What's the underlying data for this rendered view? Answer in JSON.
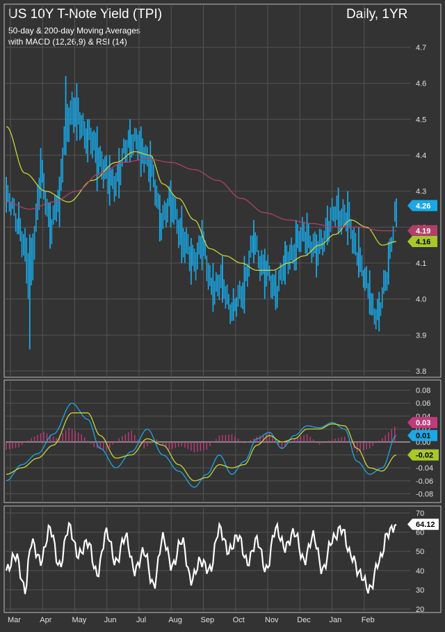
{
  "header": {
    "title": "US 10Y T-Note Yield (TPI)",
    "subtitle1": "50-day & 200-day Moving Averages",
    "subtitle2": "with MACD (12,26,9) & RSI (14)",
    "period": "Daily, 1YR"
  },
  "colors": {
    "background": "#333333",
    "panel_border": "#bfbfbf",
    "grid": "#555555",
    "price": "#1aa8e6",
    "ma50": "#c8d43a",
    "ma200": "#b0406a",
    "macd": "#1aa8e6",
    "signal": "#c8d43a",
    "histogram": "#c23a7c",
    "rsi": "#ffffff",
    "axis_text": "#e0e0e0"
  },
  "x_axis": {
    "labels": [
      "Mar",
      "Apr",
      "May",
      "Jun",
      "Jul",
      "Aug",
      "Sep",
      "Oct",
      "Nov",
      "Dec",
      "Jan",
      "Feb"
    ],
    "n_bars": 250
  },
  "chart_data": [
    {
      "type": "line",
      "panel": "price",
      "ylim": [
        3.8,
        4.7
      ],
      "yticks": [
        "3.8",
        "3.9",
        "4.0",
        "4.1",
        "4.2",
        "4.3",
        "4.4",
        "4.5",
        "4.6",
        "4.7"
      ],
      "series": [
        {
          "name": "",
          "style": "hlc-bars",
          "x": [
            0,
            8,
            15,
            22,
            28,
            34,
            38,
            45,
            52,
            58,
            66,
            72,
            79,
            86,
            92,
            98,
            105,
            112,
            118,
            125,
            132,
            138,
            145,
            152,
            158,
            165,
            172,
            178,
            185,
            192,
            198,
            205,
            212,
            218,
            225,
            232,
            238,
            244,
            249
          ],
          "values": [
            4.28,
            4.22,
            4.05,
            4.35,
            4.2,
            4.28,
            4.5,
            4.52,
            4.45,
            4.41,
            4.32,
            4.35,
            4.46,
            4.42,
            4.38,
            4.22,
            4.27,
            4.18,
            4.1,
            4.15,
            4.02,
            4.05,
            3.96,
            4.05,
            4.16,
            4.08,
            4.02,
            4.1,
            4.15,
            4.18,
            4.12,
            4.2,
            4.25,
            4.22,
            4.12,
            4.0,
            3.95,
            4.1,
            4.26
          ],
          "ranges": [
            [
              4.24,
              4.34
            ],
            [
              4.18,
              4.27
            ],
            [
              3.86,
              4.18
            ],
            [
              4.28,
              4.42
            ],
            [
              4.14,
              4.27
            ],
            [
              4.2,
              4.34
            ],
            [
              4.4,
              4.62
            ],
            [
              4.44,
              4.6
            ],
            [
              4.38,
              4.5
            ],
            [
              4.3,
              4.48
            ],
            [
              4.26,
              4.4
            ],
            [
              4.28,
              4.42
            ],
            [
              4.38,
              4.5
            ],
            [
              4.34,
              4.48
            ],
            [
              4.3,
              4.44
            ],
            [
              4.16,
              4.29
            ],
            [
              4.2,
              4.33
            ],
            [
              4.1,
              4.26
            ],
            [
              4.04,
              4.17
            ],
            [
              4.08,
              4.22
            ],
            [
              3.98,
              4.1
            ],
            [
              3.99,
              4.12
            ],
            [
              3.94,
              4.03
            ],
            [
              3.96,
              4.12
            ],
            [
              4.1,
              4.22
            ],
            [
              4.0,
              4.14
            ],
            [
              3.97,
              4.08
            ],
            [
              4.04,
              4.16
            ],
            [
              4.08,
              4.22
            ],
            [
              4.12,
              4.24
            ],
            [
              4.06,
              4.18
            ],
            [
              4.15,
              4.26
            ],
            [
              4.18,
              4.31
            ],
            [
              4.15,
              4.3
            ],
            [
              4.06,
              4.2
            ],
            [
              3.96,
              4.08
            ],
            [
              3.91,
              4.02
            ],
            [
              4.04,
              4.16
            ],
            [
              4.2,
              4.28
            ]
          ]
        },
        {
          "name": "",
          "x": [
            0,
            12,
            25,
            40,
            55,
            70,
            82,
            92,
            100,
            110,
            120,
            130,
            140,
            150,
            160,
            170,
            180,
            190,
            200,
            210,
            220,
            230,
            240,
            249
          ],
          "values": [
            4.48,
            4.35,
            4.3,
            4.27,
            4.33,
            4.38,
            4.41,
            4.4,
            4.32,
            4.28,
            4.22,
            4.14,
            4.12,
            4.1,
            4.08,
            4.08,
            4.1,
            4.12,
            4.15,
            4.18,
            4.22,
            4.2,
            4.15,
            4.16
          ]
        },
        {
          "name": "",
          "x": [
            0,
            15,
            30,
            45,
            60,
            75,
            90,
            105,
            120,
            135,
            150,
            165,
            180,
            195,
            210,
            225,
            240,
            249
          ],
          "values": [
            4.27,
            4.25,
            4.27,
            4.3,
            4.35,
            4.38,
            4.39,
            4.38,
            4.36,
            4.33,
            4.28,
            4.24,
            4.22,
            4.21,
            4.2,
            4.2,
            4.19,
            4.19
          ]
        }
      ],
      "value_tags": [
        {
          "label": "4.26",
          "value": 4.26,
          "color": "#1aa8e6",
          "text_color": "#ffffff"
        },
        {
          "label": "4.19",
          "value": 4.19,
          "color": "#b0406a",
          "text_color": "#ffffff"
        },
        {
          "label": "4.16",
          "value": 4.16,
          "color": "#a8c82a",
          "text_color": "#000000"
        }
      ]
    },
    {
      "type": "line",
      "panel": "macd",
      "ylim": [
        -0.085,
        0.085
      ],
      "yticks": [
        "0.08",
        "0.06",
        "0.04",
        "0.02",
        "0.00",
        "-0.02",
        "-0.04",
        "-0.06",
        "-0.08"
      ],
      "series": [
        {
          "name": "",
          "style": "histogram",
          "x": [
            0,
            8,
            16,
            24,
            32,
            40,
            48,
            56,
            64,
            72,
            80,
            88,
            96,
            104,
            112,
            120,
            128,
            136,
            144,
            152,
            160,
            168,
            176,
            184,
            192,
            200,
            208,
            216,
            224,
            232,
            240,
            249
          ],
          "values": [
            -0.012,
            -0.008,
            0.006,
            0.016,
            0.006,
            0.022,
            0.012,
            -0.008,
            -0.014,
            0.006,
            0.018,
            -0.01,
            0.004,
            -0.012,
            -0.006,
            -0.016,
            -0.012,
            0.01,
            0.012,
            -0.002,
            0.008,
            0.014,
            -0.01,
            0.006,
            0.012,
            -0.004,
            0.004,
            0.008,
            -0.016,
            -0.01,
            0.006,
            0.026
          ]
        },
        {
          "name": "",
          "x": [
            0,
            10,
            20,
            30,
            42,
            52,
            60,
            70,
            80,
            90,
            100,
            110,
            120,
            128,
            136,
            144,
            152,
            160,
            168,
            176,
            184,
            192,
            200,
            208,
            216,
            224,
            232,
            240,
            249
          ],
          "values": [
            -0.06,
            -0.035,
            -0.018,
            0.012,
            0.06,
            0.035,
            -0.01,
            -0.04,
            -0.015,
            0.02,
            -0.02,
            -0.045,
            -0.07,
            -0.05,
            -0.02,
            -0.05,
            -0.03,
            0.005,
            0.015,
            -0.01,
            0.01,
            0.025,
            0.022,
            0.03,
            0.02,
            -0.03,
            -0.05,
            -0.04,
            0.01
          ]
        },
        {
          "name": "",
          "x": [
            0,
            10,
            20,
            30,
            42,
            52,
            60,
            70,
            80,
            90,
            100,
            110,
            120,
            128,
            136,
            144,
            152,
            160,
            168,
            176,
            184,
            192,
            200,
            208,
            216,
            224,
            232,
            240,
            249
          ],
          "values": [
            -0.05,
            -0.04,
            -0.025,
            -0.005,
            0.045,
            0.045,
            0.01,
            -0.025,
            -0.02,
            0.005,
            -0.005,
            -0.035,
            -0.06,
            -0.055,
            -0.035,
            -0.04,
            -0.035,
            -0.005,
            0.01,
            0.0,
            0.005,
            0.02,
            0.02,
            0.028,
            0.025,
            -0.01,
            -0.04,
            -0.045,
            -0.02
          ]
        }
      ],
      "value_tags": [
        {
          "label": "0.03",
          "value": 0.03,
          "color": "#c23a7c",
          "text_color": "#ffffff"
        },
        {
          "label": "0.01",
          "value": 0.01,
          "color": "#1aa8e6",
          "text_color": "#000000"
        },
        {
          "label": "-0.02",
          "value": -0.02,
          "color": "#a8c82a",
          "text_color": "#000000"
        }
      ]
    },
    {
      "type": "line",
      "panel": "rsi",
      "ylim": [
        20,
        70
      ],
      "yticks": [
        "20",
        "30",
        "40",
        "50",
        "60",
        "70"
      ],
      "series": [
        {
          "name": "",
          "x": [
            0,
            6,
            12,
            16,
            22,
            28,
            34,
            40,
            46,
            52,
            58,
            64,
            70,
            76,
            82,
            88,
            94,
            100,
            106,
            112,
            118,
            124,
            130,
            136,
            142,
            148,
            154,
            160,
            166,
            172,
            178,
            184,
            190,
            196,
            202,
            208,
            214,
            220,
            226,
            232,
            238,
            244,
            249
          ],
          "values": [
            40,
            48,
            30,
            55,
            45,
            62,
            42,
            63,
            48,
            55,
            38,
            60,
            44,
            58,
            40,
            50,
            32,
            57,
            42,
            56,
            35,
            45,
            40,
            62,
            50,
            58,
            44,
            56,
            40,
            62,
            52,
            60,
            45,
            58,
            40,
            56,
            62,
            48,
            38,
            30,
            45,
            60,
            64
          ]
        }
      ],
      "value_tags": [
        {
          "label": "64.12",
          "value": 64.12,
          "color": "#ffffff",
          "text_color": "#000000"
        }
      ]
    }
  ]
}
